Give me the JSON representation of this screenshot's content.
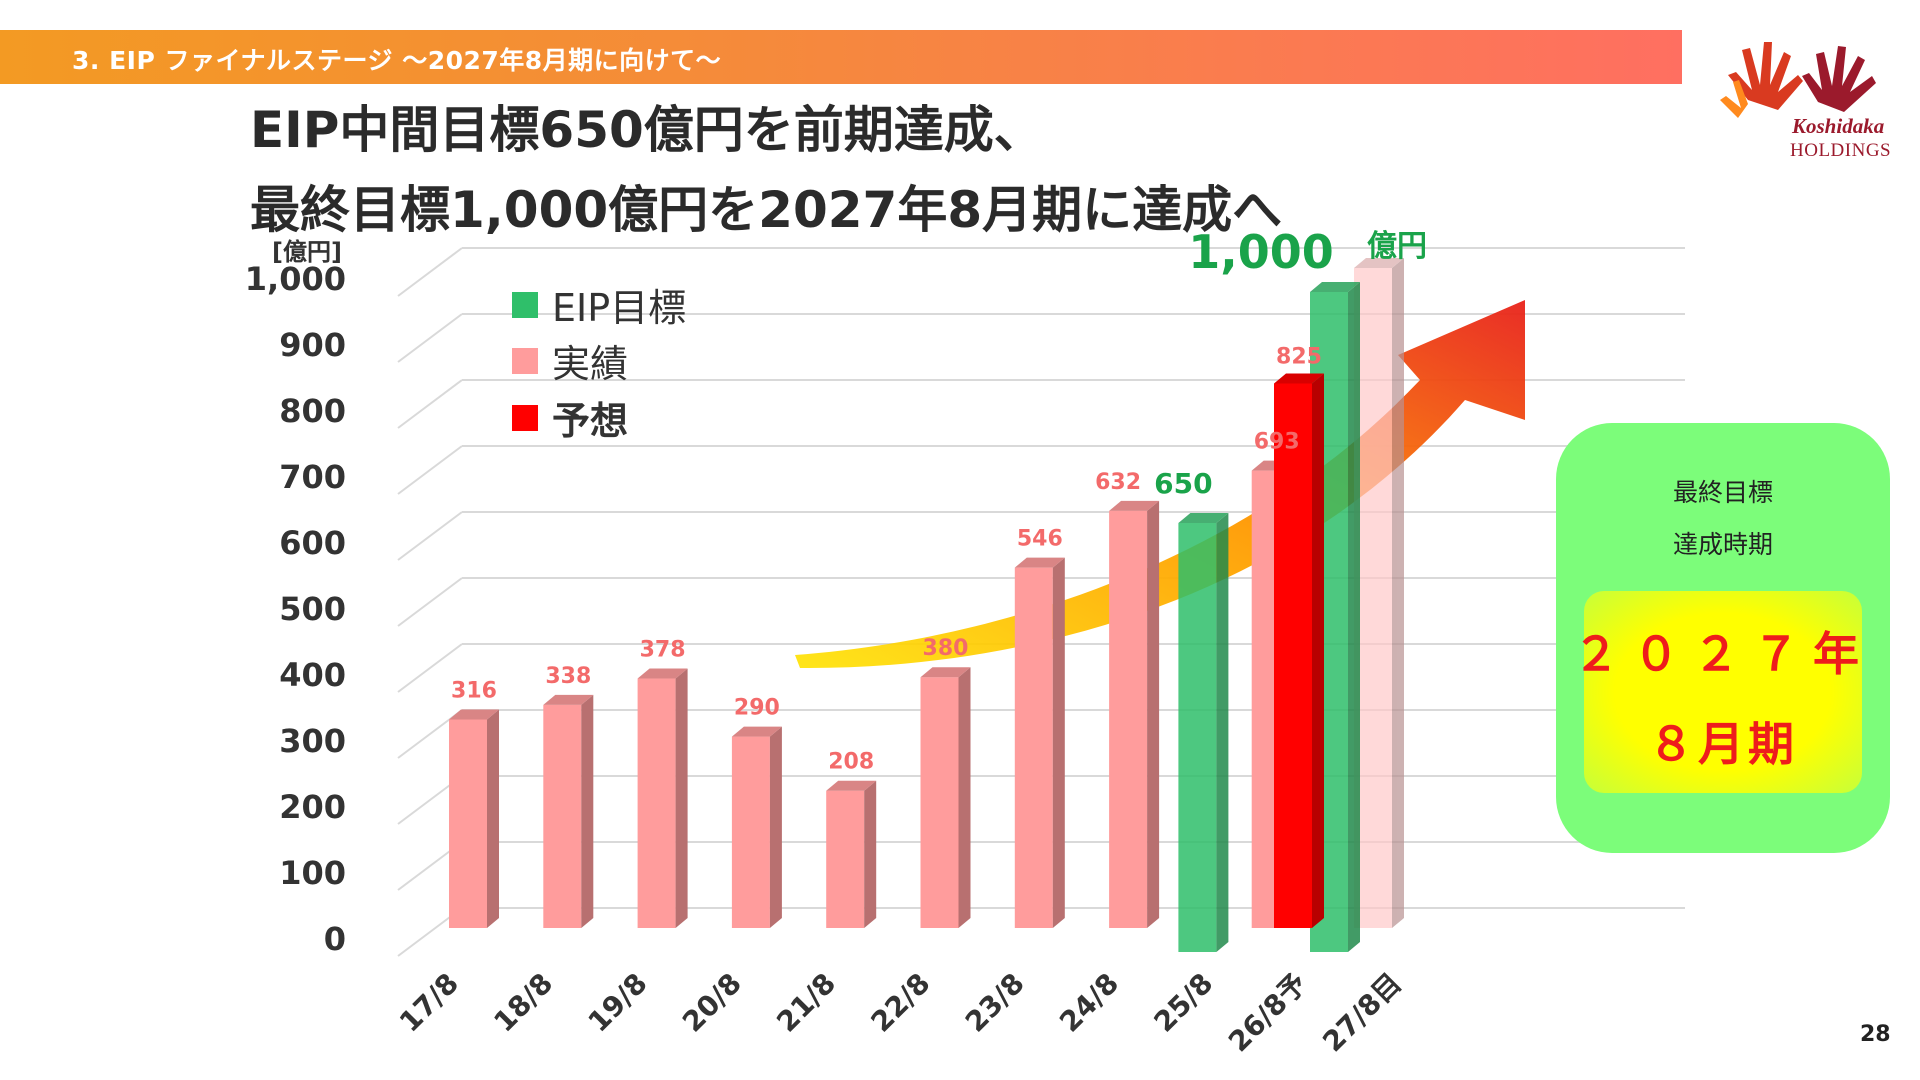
{
  "header": {
    "section_title": "3. EIP ファイナルステージ 〜2027年8月期に向けて〜"
  },
  "logo": {
    "brand": "Koshidaka",
    "sub": "HOLDINGS"
  },
  "title": {
    "line1": "EIP中間目標650億円を前期達成、",
    "line2": "最終目標1,000億円を2027年8月期に達成へ"
  },
  "chart_data": {
    "type": "bar",
    "unit_label": "[億円]",
    "ylim": [
      0,
      1000
    ],
    "yticks": [
      "1,000",
      "900",
      "800",
      "700",
      "600",
      "500",
      "400",
      "300",
      "200",
      "100",
      "0"
    ],
    "categories": [
      "17/8",
      "18/8",
      "19/8",
      "20/8",
      "21/8",
      "22/8",
      "23/8",
      "24/8",
      "25/8",
      "26/8予",
      "27/8目"
    ],
    "series": [
      {
        "name": "実績",
        "color": "#ff9c9c",
        "values": [
          316,
          338,
          378,
          290,
          208,
          380,
          546,
          632,
          null,
          693,
          null
        ],
        "labels": [
          "316",
          "338",
          "378",
          "290",
          "208",
          "380",
          "546",
          "632",
          "",
          "693",
          ""
        ]
      },
      {
        "name": "EIP目標",
        "color": "#2fbf6a",
        "values": [
          null,
          null,
          null,
          null,
          null,
          null,
          null,
          null,
          650,
          null,
          1000
        ],
        "labels": [
          "",
          "",
          "",
          "",
          "",
          "",
          "",
          "",
          "650",
          "",
          "1,000"
        ],
        "unit_suffix": "億円"
      },
      {
        "name": "予想",
        "color": "#ff0000",
        "values": [
          null,
          null,
          null,
          null,
          null,
          null,
          null,
          null,
          null,
          null,
          825
        ],
        "labels": [
          "",
          "",
          "",
          "",
          "",
          "",
          "",
          "",
          "",
          "",
          "825"
        ]
      }
    ],
    "legend": [
      "EIP目標",
      "実績",
      "予想"
    ],
    "legend_position": "top-left"
  },
  "goal_panel": {
    "line1": "最終目標",
    "line2": "達成時期",
    "year": "２０２７年",
    "period": "８月期"
  },
  "page_number": "28"
}
